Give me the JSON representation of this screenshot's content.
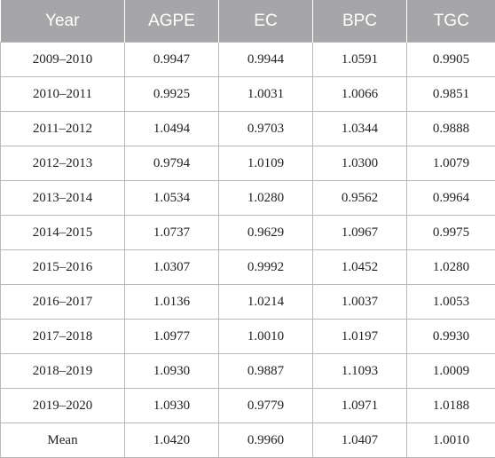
{
  "table": {
    "headers": [
      "Year",
      "AGPE",
      "EC",
      "BPC",
      "TGC"
    ],
    "rows": [
      [
        "2009–2010",
        "0.9947",
        "0.9944",
        "1.0591",
        "0.9905"
      ],
      [
        "2010–2011",
        "0.9925",
        "1.0031",
        "1.0066",
        "0.9851"
      ],
      [
        "2011–2012",
        "1.0494",
        "0.9703",
        "1.0344",
        "0.9888"
      ],
      [
        "2012–2013",
        "0.9794",
        "1.0109",
        "1.0300",
        "1.0079"
      ],
      [
        "2013–2014",
        "1.0534",
        "1.0280",
        "0.9562",
        "0.9964"
      ],
      [
        "2014–2015",
        "1.0737",
        "0.9629",
        "1.0967",
        "0.9975"
      ],
      [
        "2015–2016",
        "1.0307",
        "0.9992",
        "1.0452",
        "1.0280"
      ],
      [
        "2016–2017",
        "1.0136",
        "1.0214",
        "1.0037",
        "1.0053"
      ],
      [
        "2017–2018",
        "1.0977",
        "1.0010",
        "1.0197",
        "0.9930"
      ],
      [
        "2018–2019",
        "1.0930",
        "0.9887",
        "1.1093",
        "1.0009"
      ],
      [
        "2019–2020",
        "1.0930",
        "0.9779",
        "1.0971",
        "1.0188"
      ],
      [
        "Mean",
        "1.0420",
        "0.9960",
        "1.0407",
        "1.0010"
      ]
    ]
  },
  "colors": {
    "header_background": "#a6a6a8",
    "header_text": "#ffffff",
    "border": "#b9b9b9"
  }
}
